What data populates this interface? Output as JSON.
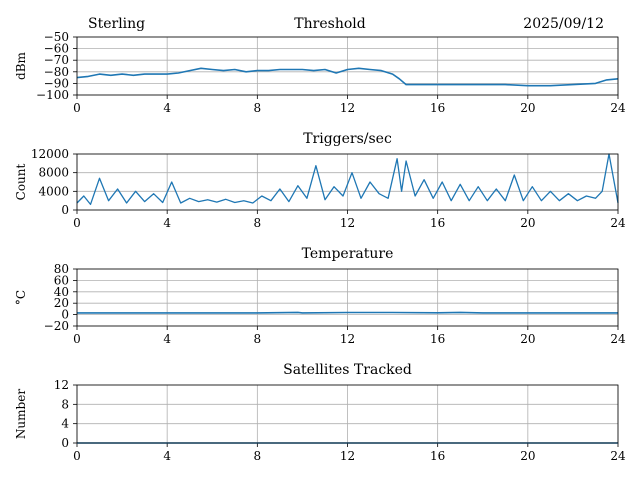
{
  "header": {
    "station": "Sterling",
    "title": "Threshold",
    "date": "2025/09/12"
  },
  "colors": {
    "series": "#1f77b4",
    "grid": "#b0b0b0"
  },
  "chart_data": [
    {
      "id": "threshold",
      "type": "line",
      "title": "",
      "xlabel": "",
      "ylabel": "dBm",
      "xlim": [
        0,
        24
      ],
      "ylim": [
        -100,
        -50
      ],
      "xticks": [
        "0",
        "4",
        "8",
        "12",
        "16",
        "20",
        "24"
      ],
      "yticks": [
        "−50",
        "−60",
        "−70",
        "−80",
        "−90",
        "−100"
      ],
      "series": [
        {
          "name": "threshold",
          "x": [
            0,
            0.5,
            1,
            1.5,
            2,
            2.5,
            3,
            3.5,
            4,
            4.5,
            5,
            5.5,
            6,
            6.5,
            7,
            7.5,
            8,
            8.5,
            9,
            9.5,
            10,
            10.5,
            11,
            11.5,
            12,
            12.5,
            13,
            13.5,
            14,
            14.3,
            14.6,
            15,
            16,
            17,
            18,
            19,
            20,
            21,
            22,
            23,
            23.5,
            24
          ],
          "values": [
            -85,
            -84,
            -82,
            -83,
            -82,
            -83,
            -82,
            -82,
            -82,
            -81,
            -79,
            -77,
            -78,
            -79,
            -78,
            -80,
            -79,
            -79,
            -78,
            -78,
            -78,
            -79,
            -78,
            -81,
            -78,
            -77,
            -78,
            -79,
            -82,
            -86,
            -91,
            -91,
            -91,
            -91,
            -91,
            -91,
            -92,
            -92,
            -91,
            -90,
            -87,
            -86
          ]
        }
      ]
    },
    {
      "id": "triggers",
      "type": "line",
      "title": "Triggers/sec",
      "xlabel": "",
      "ylabel": "Count",
      "xlim": [
        0,
        24
      ],
      "ylim": [
        0,
        12000
      ],
      "xticks": [
        "0",
        "4",
        "8",
        "12",
        "16",
        "20",
        "24"
      ],
      "yticks": [
        "12000",
        "8000",
        "4000",
        "0"
      ],
      "series": [
        {
          "name": "triggers",
          "x": [
            0,
            0.3,
            0.6,
            1.0,
            1.4,
            1.8,
            2.2,
            2.6,
            3.0,
            3.4,
            3.8,
            4.2,
            4.6,
            5.0,
            5.4,
            5.8,
            6.2,
            6.6,
            7.0,
            7.4,
            7.8,
            8.2,
            8.6,
            9.0,
            9.4,
            9.8,
            10.2,
            10.6,
            11.0,
            11.4,
            11.8,
            12.2,
            12.6,
            13.0,
            13.4,
            13.8,
            14.2,
            14.4,
            14.6,
            15.0,
            15.4,
            15.8,
            16.2,
            16.6,
            17.0,
            17.4,
            17.8,
            18.2,
            18.6,
            19.0,
            19.4,
            19.8,
            20.2,
            20.6,
            21.0,
            21.4,
            21.8,
            22.2,
            22.6,
            23.0,
            23.3,
            23.6,
            24.0
          ],
          "values": [
            1500,
            3000,
            1200,
            6800,
            2000,
            4500,
            1500,
            4000,
            1800,
            3500,
            1600,
            6000,
            1500,
            2500,
            1800,
            2200,
            1700,
            2300,
            1600,
            2000,
            1500,
            3000,
            2000,
            4500,
            1800,
            5200,
            2500,
            9500,
            2200,
            5000,
            3000,
            8000,
            2500,
            6000,
            3500,
            2500,
            11000,
            4000,
            10500,
            3000,
            6500,
            2500,
            6000,
            2000,
            5500,
            2000,
            5000,
            2000,
            4500,
            2000,
            7500,
            2000,
            5000,
            2000,
            4000,
            2000,
            3500,
            2000,
            3000,
            2500,
            4000,
            12000,
            1500
          ]
        }
      ]
    },
    {
      "id": "temperature",
      "type": "line",
      "title": "Temperature",
      "xlabel": "",
      "ylabel": "°C",
      "xlim": [
        0,
        24
      ],
      "ylim": [
        -20,
        80
      ],
      "xticks": [
        "0",
        "4",
        "8",
        "12",
        "16",
        "20",
        "24"
      ],
      "yticks": [
        "80",
        "60",
        "40",
        "20",
        "0",
        "−20"
      ],
      "series": [
        {
          "name": "temperature",
          "x": [
            0,
            4,
            8,
            9.8,
            10,
            12,
            14,
            16,
            17,
            18,
            20,
            24
          ],
          "values": [
            3,
            3,
            3,
            3.8,
            3,
            3.6,
            3.6,
            3.2,
            3.8,
            3,
            3,
            3
          ]
        }
      ]
    },
    {
      "id": "satellites",
      "type": "line",
      "title": "Satellites Tracked",
      "xlabel": "",
      "ylabel": "Number",
      "xlim": [
        0,
        24
      ],
      "ylim": [
        0,
        12
      ],
      "xticks": [
        "0",
        "4",
        "8",
        "12",
        "16",
        "20",
        "24"
      ],
      "yticks": [
        "12",
        "8",
        "4",
        "0"
      ],
      "series": [
        {
          "name": "satellites",
          "x": [
            0,
            24
          ],
          "values": [
            0,
            0
          ]
        }
      ]
    }
  ]
}
